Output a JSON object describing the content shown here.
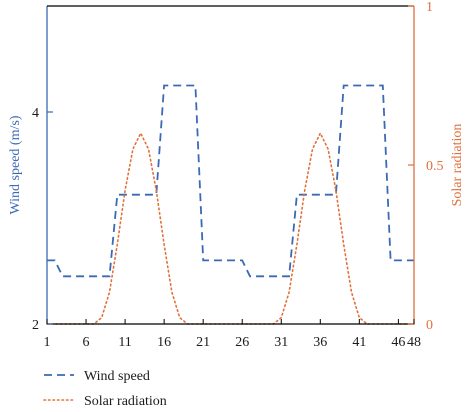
{
  "chart_data": {
    "type": "line",
    "title": "",
    "xlabel": "",
    "x_ticks": [
      1,
      6,
      11,
      16,
      21,
      26,
      31,
      36,
      41,
      46,
      48
    ],
    "xlim": [
      1,
      48
    ],
    "grid": false,
    "legend_placement": "bottom-left, below plot",
    "left_axis": {
      "label": "Wind speed (m/s)",
      "ylim": [
        2,
        5
      ],
      "ticks": [
        2,
        4
      ],
      "color": "#3a6ab4"
    },
    "right_axis": {
      "label": "Solar radiation",
      "ylim": [
        0,
        1
      ],
      "ticks": [
        0,
        0.5,
        1
      ],
      "color": "#e0703c"
    },
    "series": [
      {
        "name": "Wind speed",
        "axis": "left",
        "style": "dashed",
        "color": "#3a6ab4",
        "x": [
          1,
          2,
          3,
          4,
          5,
          6,
          7,
          8,
          9,
          10,
          11,
          12,
          13,
          14,
          15,
          16,
          17,
          18,
          19,
          20,
          21,
          22,
          23,
          24,
          25,
          26,
          27,
          28,
          29,
          30,
          31,
          32,
          33,
          34,
          35,
          36,
          37,
          38,
          39,
          40,
          41,
          42,
          43,
          44,
          45,
          46,
          47,
          48
        ],
        "values": [
          2.6,
          2.6,
          2.45,
          2.45,
          2.45,
          2.45,
          2.45,
          2.45,
          2.45,
          3.22,
          3.22,
          3.22,
          3.22,
          3.22,
          3.22,
          4.25,
          4.25,
          4.25,
          4.25,
          4.25,
          2.6,
          2.6,
          2.6,
          2.6,
          2.6,
          2.6,
          2.45,
          2.45,
          2.45,
          2.45,
          2.45,
          2.45,
          3.22,
          3.22,
          3.22,
          3.22,
          3.22,
          3.22,
          4.25,
          4.25,
          4.25,
          4.25,
          4.25,
          4.25,
          2.6,
          2.6,
          2.6,
          2.6
        ]
      },
      {
        "name": "Solar radiation",
        "axis": "right",
        "style": "dotted",
        "color": "#e0703c",
        "x": [
          1,
          2,
          3,
          4,
          5,
          6,
          7,
          8,
          9,
          10,
          11,
          12,
          13,
          14,
          15,
          16,
          17,
          18,
          19,
          20,
          21,
          22,
          23,
          24,
          25,
          26,
          27,
          28,
          29,
          30,
          31,
          32,
          33,
          34,
          35,
          36,
          37,
          38,
          39,
          40,
          41,
          42,
          43,
          44,
          45,
          46,
          47,
          48
        ],
        "values": [
          0,
          0,
          0,
          0,
          0,
          0,
          0,
          0.02,
          0.1,
          0.25,
          0.42,
          0.55,
          0.6,
          0.55,
          0.42,
          0.25,
          0.1,
          0.02,
          0,
          0,
          0,
          0,
          0,
          0,
          0,
          0,
          0,
          0,
          0,
          0,
          0.02,
          0.1,
          0.25,
          0.42,
          0.55,
          0.6,
          0.55,
          0.42,
          0.25,
          0.1,
          0.02,
          0,
          0,
          0,
          0,
          0,
          0,
          0
        ]
      }
    ]
  }
}
